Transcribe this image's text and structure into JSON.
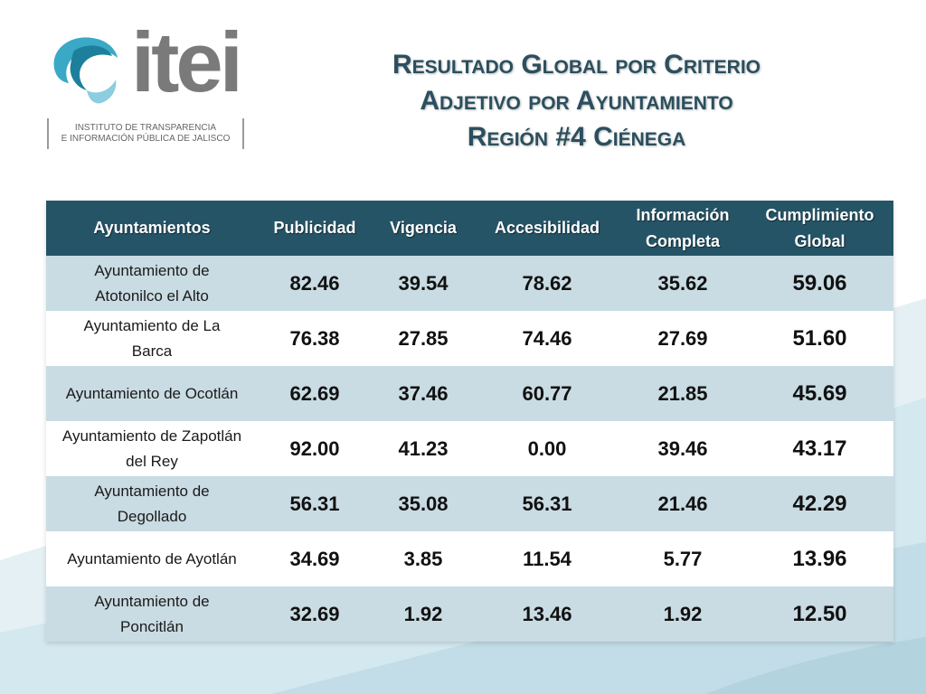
{
  "logo": {
    "word": "itei",
    "subtitle_line1": "INSTITUTO DE TRANSPARENCIA",
    "subtitle_line2": "E INFORMACIÓN PÚBLICA DE JALISCO"
  },
  "title": {
    "line1": "Resultado Global por Criterio",
    "line2": "Adjetivo por Ayuntamiento",
    "line3": "Región #4  Ciénega"
  },
  "table": {
    "headers": {
      "ayuntamientos": "Ayuntamientos",
      "publicidad": "Publicidad",
      "vigencia": "Vigencia",
      "accesibilidad": "Accesibilidad",
      "informacion_l1": "Información",
      "informacion_l2": "Completa",
      "cumplimiento_l1": "Cumplimiento",
      "cumplimiento_l2": "Global"
    },
    "rows": [
      {
        "name_l1": "Ayuntamiento de",
        "name_l2": "Atotonilco el Alto",
        "publicidad": "82.46",
        "vigencia": "39.54",
        "accesibilidad": "78.62",
        "informacion": "35.62",
        "global": "59.06"
      },
      {
        "name_l1": "Ayuntamiento de La",
        "name_l2": "Barca",
        "publicidad": "76.38",
        "vigencia": "27.85",
        "accesibilidad": "74.46",
        "informacion": "27.69",
        "global": "51.60"
      },
      {
        "name_l1": "Ayuntamiento de Ocotlán",
        "name_l2": "",
        "publicidad": "62.69",
        "vigencia": "37.46",
        "accesibilidad": "60.77",
        "informacion": "21.85",
        "global": "45.69"
      },
      {
        "name_l1": "Ayuntamiento de Zapotlán",
        "name_l2": "del Rey",
        "publicidad": "92.00",
        "vigencia": "41.23",
        "accesibilidad": "0.00",
        "informacion": "39.46",
        "global": "43.17"
      },
      {
        "name_l1": "Ayuntamiento de",
        "name_l2": "Degollado",
        "publicidad": "56.31",
        "vigencia": "35.08",
        "accesibilidad": "56.31",
        "informacion": "21.46",
        "global": "42.29"
      },
      {
        "name_l1": "Ayuntamiento de Ayotlán",
        "name_l2": "",
        "publicidad": "34.69",
        "vigencia": "3.85",
        "accesibilidad": "11.54",
        "informacion": "5.77",
        "global": "13.96"
      },
      {
        "name_l1": "Ayuntamiento de",
        "name_l2": "Poncitlán",
        "publicidad": "32.69",
        "vigencia": "1.92",
        "accesibilidad": "13.46",
        "informacion": "1.92",
        "global": "12.50"
      }
    ]
  },
  "colors": {
    "header_bg": "#255467",
    "title_color": "#2b4f5e",
    "row_alt": "#c9dbe3"
  }
}
